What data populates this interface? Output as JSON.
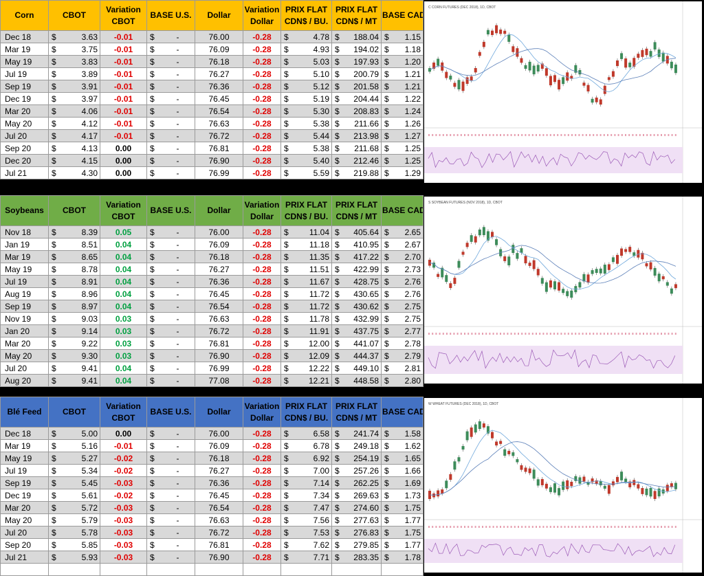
{
  "currency_symbol": "$",
  "dash": "-",
  "columns": {
    "cbot": "CBOT",
    "variation_cbot": [
      "Variation",
      "CBOT"
    ],
    "base_us": "BASE U.S.",
    "dollar": "Dollar",
    "variation_dollar": [
      "Variation",
      "Dollar"
    ],
    "prix_flat_bu": [
      "PRIX FLAT",
      "CDN$ / BU."
    ],
    "prix_flat_mt": [
      "PRIX FLAT",
      "CDN$ / MT"
    ],
    "base_cad": "BASE CAD"
  },
  "panels": [
    {
      "name": "Corn",
      "header_color": "#ffc000",
      "chart_title": "C CORN FUTURES (DEC 2018), 1D, CBOT",
      "rows": [
        {
          "month": "Dec 18",
          "cbot": "3.63",
          "var": "-0.01",
          "dollar": "76.00",
          "vdollar": "-0.28",
          "bu": "4.78",
          "mt": "188.04",
          "cad": "1.15"
        },
        {
          "month": "Mar 19",
          "cbot": "3.75",
          "var": "-0.01",
          "dollar": "76.09",
          "vdollar": "-0.28",
          "bu": "4.93",
          "mt": "194.02",
          "cad": "1.18"
        },
        {
          "month": "May 19",
          "cbot": "3.83",
          "var": "-0.01",
          "dollar": "76.18",
          "vdollar": "-0.28",
          "bu": "5.03",
          "mt": "197.93",
          "cad": "1.20"
        },
        {
          "month": "Jul 19",
          "cbot": "3.89",
          "var": "-0.01",
          "dollar": "76.27",
          "vdollar": "-0.28",
          "bu": "5.10",
          "mt": "200.79",
          "cad": "1.21"
        },
        {
          "month": "Sep 19",
          "cbot": "3.91",
          "var": "-0.01",
          "dollar": "76.36",
          "vdollar": "-0.28",
          "bu": "5.12",
          "mt": "201.58",
          "cad": "1.21"
        },
        {
          "month": "Dec 19",
          "cbot": "3.97",
          "var": "-0.01",
          "dollar": "76.45",
          "vdollar": "-0.28",
          "bu": "5.19",
          "mt": "204.44",
          "cad": "1.22"
        },
        {
          "month": "Mar 20",
          "cbot": "4.06",
          "var": "-0.01",
          "dollar": "76.54",
          "vdollar": "-0.28",
          "bu": "5.30",
          "mt": "208.83",
          "cad": "1.24"
        },
        {
          "month": "May 20",
          "cbot": "4.12",
          "var": "-0.01",
          "dollar": "76.63",
          "vdollar": "-0.28",
          "bu": "5.38",
          "mt": "211.66",
          "cad": "1.26"
        },
        {
          "month": "Jul 20",
          "cbot": "4.17",
          "var": "-0.01",
          "dollar": "76.72",
          "vdollar": "-0.28",
          "bu": "5.44",
          "mt": "213.98",
          "cad": "1.27"
        },
        {
          "month": "Sep 20",
          "cbot": "4.13",
          "var": "0.00",
          "dollar": "76.81",
          "vdollar": "-0.28",
          "bu": "5.38",
          "mt": "211.68",
          "cad": "1.25"
        },
        {
          "month": "Dec 20",
          "cbot": "4.15",
          "var": "0.00",
          "dollar": "76.90",
          "vdollar": "-0.28",
          "bu": "5.40",
          "mt": "212.46",
          "cad": "1.25"
        },
        {
          "month": "Jul 21",
          "cbot": "4.30",
          "var": "0.00",
          "dollar": "76.99",
          "vdollar": "-0.28",
          "bu": "5.59",
          "mt": "219.88",
          "cad": "1.29"
        }
      ]
    },
    {
      "name": "Soybeans",
      "header_color": "#70ad47",
      "chart_title": "S SOYBEAN FUTURES (NOV 2018), 1D, CBOT",
      "rows": [
        {
          "month": "Nov 18",
          "cbot": "8.39",
          "var": "0.05",
          "dollar": "76.00",
          "vdollar": "-0.28",
          "bu": "11.04",
          "mt": "405.64",
          "cad": "2.65"
        },
        {
          "month": "Jan 19",
          "cbot": "8.51",
          "var": "0.04",
          "dollar": "76.09",
          "vdollar": "-0.28",
          "bu": "11.18",
          "mt": "410.95",
          "cad": "2.67"
        },
        {
          "month": "Mar 19",
          "cbot": "8.65",
          "var": "0.04",
          "dollar": "76.18",
          "vdollar": "-0.28",
          "bu": "11.35",
          "mt": "417.22",
          "cad": "2.70"
        },
        {
          "month": "May 19",
          "cbot": "8.78",
          "var": "0.04",
          "dollar": "76.27",
          "vdollar": "-0.28",
          "bu": "11.51",
          "mt": "422.99",
          "cad": "2.73"
        },
        {
          "month": "Jul 19",
          "cbot": "8.91",
          "var": "0.04",
          "dollar": "76.36",
          "vdollar": "-0.28",
          "bu": "11.67",
          "mt": "428.75",
          "cad": "2.76"
        },
        {
          "month": "Aug 19",
          "cbot": "8.96",
          "var": "0.04",
          "dollar": "76.45",
          "vdollar": "-0.28",
          "bu": "11.72",
          "mt": "430.65",
          "cad": "2.76"
        },
        {
          "month": "Sep 19",
          "cbot": "8.97",
          "var": "0.04",
          "dollar": "76.54",
          "vdollar": "-0.28",
          "bu": "11.72",
          "mt": "430.62",
          "cad": "2.75"
        },
        {
          "month": "Nov 19",
          "cbot": "9.03",
          "var": "0.03",
          "dollar": "76.63",
          "vdollar": "-0.28",
          "bu": "11.78",
          "mt": "432.99",
          "cad": "2.75"
        },
        {
          "month": "Jan 20",
          "cbot": "9.14",
          "var": "0.03",
          "dollar": "76.72",
          "vdollar": "-0.28",
          "bu": "11.91",
          "mt": "437.75",
          "cad": "2.77"
        },
        {
          "month": "Mar 20",
          "cbot": "9.22",
          "var": "0.03",
          "dollar": "76.81",
          "vdollar": "-0.28",
          "bu": "12.00",
          "mt": "441.07",
          "cad": "2.78"
        },
        {
          "month": "May 20",
          "cbot": "9.30",
          "var": "0.03",
          "dollar": "76.90",
          "vdollar": "-0.28",
          "bu": "12.09",
          "mt": "444.37",
          "cad": "2.79"
        },
        {
          "month": "Jul 20",
          "cbot": "9.41",
          "var": "0.04",
          "dollar": "76.99",
          "vdollar": "-0.28",
          "bu": "12.22",
          "mt": "449.10",
          "cad": "2.81"
        },
        {
          "month": "Aug 20",
          "cbot": "9.41",
          "var": "0.04",
          "dollar": "77.08",
          "vdollar": "-0.28",
          "bu": "12.21",
          "mt": "448.58",
          "cad": "2.80"
        }
      ]
    },
    {
      "name": "Blé Feed",
      "header_color": "#4472c4",
      "chart_title": "W WHEAT FUTURES (DEC 2018), 1D, CBOT",
      "rows": [
        {
          "month": "Dec 18",
          "cbot": "5.00",
          "var": "0.00",
          "dollar": "76.00",
          "vdollar": "-0.28",
          "bu": "6.58",
          "mt": "241.74",
          "cad": "1.58"
        },
        {
          "month": "Mar 19",
          "cbot": "5.16",
          "var": "-0.01",
          "dollar": "76.09",
          "vdollar": "-0.28",
          "bu": "6.78",
          "mt": "249.18",
          "cad": "1.62"
        },
        {
          "month": "May 19",
          "cbot": "5.27",
          "var": "-0.02",
          "dollar": "76.18",
          "vdollar": "-0.28",
          "bu": "6.92",
          "mt": "254.19",
          "cad": "1.65"
        },
        {
          "month": "Jul 19",
          "cbot": "5.34",
          "var": "-0.02",
          "dollar": "76.27",
          "vdollar": "-0.28",
          "bu": "7.00",
          "mt": "257.26",
          "cad": "1.66"
        },
        {
          "month": "Sep 19",
          "cbot": "5.45",
          "var": "-0.03",
          "dollar": "76.36",
          "vdollar": "-0.28",
          "bu": "7.14",
          "mt": "262.25",
          "cad": "1.69"
        },
        {
          "month": "Dec 19",
          "cbot": "5.61",
          "var": "-0.02",
          "dollar": "76.45",
          "vdollar": "-0.28",
          "bu": "7.34",
          "mt": "269.63",
          "cad": "1.73"
        },
        {
          "month": "Mar 20",
          "cbot": "5.72",
          "var": "-0.03",
          "dollar": "76.54",
          "vdollar": "-0.28",
          "bu": "7.47",
          "mt": "274.60",
          "cad": "1.75"
        },
        {
          "month": "May 20",
          "cbot": "5.79",
          "var": "-0.03",
          "dollar": "76.63",
          "vdollar": "-0.28",
          "bu": "7.56",
          "mt": "277.63",
          "cad": "1.77"
        },
        {
          "month": "Jul 20",
          "cbot": "5.78",
          "var": "-0.03",
          "dollar": "76.72",
          "vdollar": "-0.28",
          "bu": "7.53",
          "mt": "276.83",
          "cad": "1.75"
        },
        {
          "month": "Sep 20",
          "cbot": "5.85",
          "var": "-0.03",
          "dollar": "76.81",
          "vdollar": "-0.28",
          "bu": "7.62",
          "mt": "279.85",
          "cad": "1.77"
        },
        {
          "month": "Jul 21",
          "cbot": "5.93",
          "var": "-0.03",
          "dollar": "76.90",
          "vdollar": "-0.28",
          "bu": "7.71",
          "mt": "283.35",
          "cad": "1.78"
        },
        {
          "month": "",
          "cbot": "",
          "var": "",
          "dollar": "",
          "vdollar": "",
          "bu": "",
          "mt": "",
          "cad": ""
        }
      ]
    }
  ]
}
